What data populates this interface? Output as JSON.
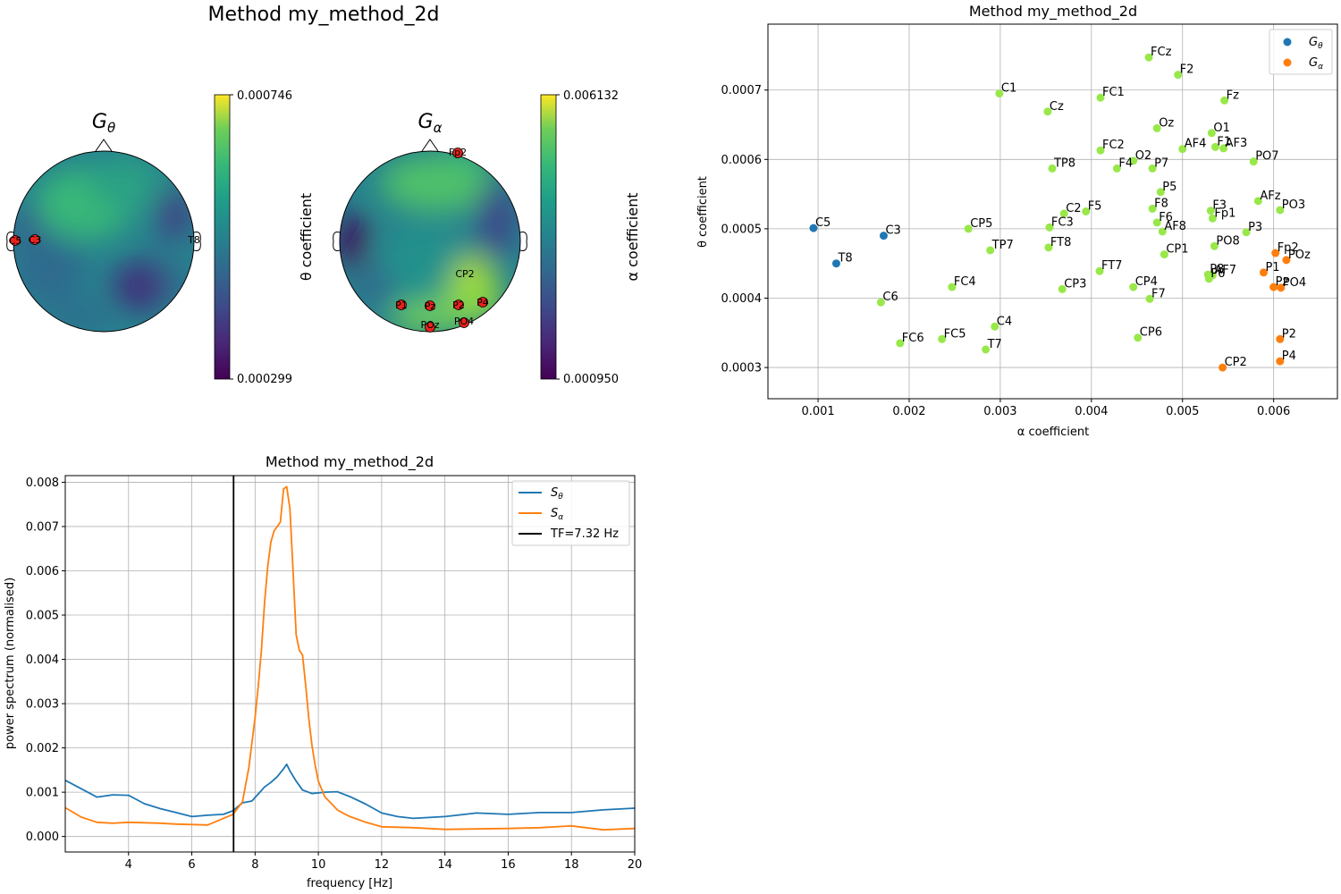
{
  "figure": {
    "topomap_suptitle": "Method my_method_2d"
  },
  "topomaps": [
    {
      "title_symbol": "G",
      "title_sub": "θ",
      "cbar_max": "0.000746",
      "cbar_min": "0.000299",
      "cbar_label": "θ coefficient",
      "markers": [
        "C5",
        "C3",
        "T8"
      ]
    },
    {
      "title_symbol": "G",
      "title_sub": "α",
      "cbar_max": "0.006132",
      "cbar_min": "0.000950",
      "cbar_label": "α coefficient",
      "markers": [
        "Fp2",
        "CP2",
        "P1",
        "P2",
        "P4",
        "POz",
        "PO4",
        "Pz"
      ]
    }
  ],
  "colors": {
    "theta": "#1f77b4",
    "alpha": "#ff7f0e",
    "other": "#98e84a",
    "tf_line": "#000000",
    "marker": "#e8231d"
  },
  "chart_data": [
    {
      "type": "scatter",
      "title": "Method my_method_2d",
      "xlabel": "α coefficient",
      "ylabel": "θ coefficient",
      "xlim": [
        0.00045,
        0.0067
      ],
      "ylim": [
        0.000255,
        0.000795
      ],
      "xticks": [
        0.001,
        0.002,
        0.003,
        0.004,
        0.005,
        0.006
      ],
      "xtick_labels": [
        "0.001",
        "0.002",
        "0.003",
        "0.004",
        "0.005",
        "0.006"
      ],
      "yticks": [
        0.0003,
        0.0004,
        0.0005,
        0.0006,
        0.0007
      ],
      "ytick_labels": [
        "0.0003",
        "0.0004",
        "0.0005",
        "0.0006",
        "0.0007"
      ],
      "grid": true,
      "legend": "top-right",
      "legend_entries": [
        {
          "symbol": "G",
          "sub": "θ",
          "color": "#1f77b4"
        },
        {
          "symbol": "G",
          "sub": "α",
          "color": "#ff7f0e"
        }
      ],
      "points": [
        {
          "label": "C5",
          "x": 0.00095,
          "y": 0.000501,
          "group": "theta"
        },
        {
          "label": "C3",
          "x": 0.00172,
          "y": 0.00049,
          "group": "theta"
        },
        {
          "label": "T8",
          "x": 0.0012,
          "y": 0.00045,
          "group": "theta"
        },
        {
          "label": "Fp2",
          "x": 0.00602,
          "y": 0.000465,
          "group": "alpha"
        },
        {
          "label": "POz",
          "x": 0.00614,
          "y": 0.000455,
          "group": "alpha"
        },
        {
          "label": "P1",
          "x": 0.00589,
          "y": 0.000437,
          "group": "alpha"
        },
        {
          "label": "Pz",
          "x": 0.006,
          "y": 0.000416,
          "group": "alpha"
        },
        {
          "label": "PO4",
          "x": 0.00608,
          "y": 0.000415,
          "group": "alpha"
        },
        {
          "label": "P2",
          "x": 0.00607,
          "y": 0.000341,
          "group": "alpha"
        },
        {
          "label": "P4",
          "x": 0.00607,
          "y": 0.000309,
          "group": "alpha"
        },
        {
          "label": "CP2",
          "x": 0.00544,
          "y": 0.0003,
          "group": "alpha"
        },
        {
          "label": "FCz",
          "x": 0.00463,
          "y": 0.000747,
          "group": "other"
        },
        {
          "label": "F2",
          "x": 0.00495,
          "y": 0.000722,
          "group": "other"
        },
        {
          "label": "C1",
          "x": 0.00299,
          "y": 0.000695,
          "group": "other"
        },
        {
          "label": "FC1",
          "x": 0.0041,
          "y": 0.000689,
          "group": "other"
        },
        {
          "label": "Fz",
          "x": 0.00546,
          "y": 0.000685,
          "group": "other"
        },
        {
          "label": "Cz",
          "x": 0.00352,
          "y": 0.000669,
          "group": "other"
        },
        {
          "label": "Oz",
          "x": 0.00472,
          "y": 0.000645,
          "group": "other"
        },
        {
          "label": "O1",
          "x": 0.00532,
          "y": 0.000638,
          "group": "other"
        },
        {
          "label": "FC2",
          "x": 0.0041,
          "y": 0.000613,
          "group": "other"
        },
        {
          "label": "AF4",
          "x": 0.005,
          "y": 0.000615,
          "group": "other"
        },
        {
          "label": "F1",
          "x": 0.00536,
          "y": 0.000618,
          "group": "other"
        },
        {
          "label": "AF3",
          "x": 0.00545,
          "y": 0.000616,
          "group": "other"
        },
        {
          "label": "O2",
          "x": 0.00446,
          "y": 0.000598,
          "group": "other"
        },
        {
          "label": "PO7",
          "x": 0.00578,
          "y": 0.000597,
          "group": "other"
        },
        {
          "label": "TP8",
          "x": 0.00357,
          "y": 0.000587,
          "group": "other"
        },
        {
          "label": "F4",
          "x": 0.00428,
          "y": 0.000587,
          "group": "other"
        },
        {
          "label": "P7",
          "x": 0.00467,
          "y": 0.000587,
          "group": "other"
        },
        {
          "label": "P5",
          "x": 0.00476,
          "y": 0.000553,
          "group": "other"
        },
        {
          "label": "AFz",
          "x": 0.00583,
          "y": 0.00054,
          "group": "other"
        },
        {
          "label": "F8",
          "x": 0.00467,
          "y": 0.000529,
          "group": "other"
        },
        {
          "label": "F3",
          "x": 0.00531,
          "y": 0.000526,
          "group": "other"
        },
        {
          "label": "PO3",
          "x": 0.00607,
          "y": 0.000527,
          "group": "other"
        },
        {
          "label": "F5",
          "x": 0.00394,
          "y": 0.000525,
          "group": "other"
        },
        {
          "label": "C2",
          "x": 0.0037,
          "y": 0.000522,
          "group": "other"
        },
        {
          "label": "Fp1",
          "x": 0.00533,
          "y": 0.000515,
          "group": "other"
        },
        {
          "label": "F6",
          "x": 0.00472,
          "y": 0.000509,
          "group": "other"
        },
        {
          "label": "FC3",
          "x": 0.00354,
          "y": 0.000502,
          "group": "other"
        },
        {
          "label": "CP5",
          "x": 0.00265,
          "y": 0.0005,
          "group": "other"
        },
        {
          "label": "AF8",
          "x": 0.00478,
          "y": 0.000496,
          "group": "other"
        },
        {
          "label": "P3",
          "x": 0.0057,
          "y": 0.000495,
          "group": "other"
        },
        {
          "label": "PO8",
          "x": 0.00535,
          "y": 0.000475,
          "group": "other"
        },
        {
          "label": "FT8",
          "x": 0.00353,
          "y": 0.000473,
          "group": "other"
        },
        {
          "label": "TP7",
          "x": 0.00289,
          "y": 0.000469,
          "group": "other"
        },
        {
          "label": "CP1",
          "x": 0.0048,
          "y": 0.000463,
          "group": "other"
        },
        {
          "label": "FT7",
          "x": 0.00409,
          "y": 0.000439,
          "group": "other"
        },
        {
          "label": "P8",
          "x": 0.00528,
          "y": 0.000434,
          "group": "other"
        },
        {
          "label": "AF7",
          "x": 0.00533,
          "y": 0.000433,
          "group": "other"
        },
        {
          "label": "P6",
          "x": 0.00529,
          "y": 0.000428,
          "group": "other"
        },
        {
          "label": "CP4",
          "x": 0.00446,
          "y": 0.000416,
          "group": "other"
        },
        {
          "label": "FC4",
          "x": 0.00247,
          "y": 0.000416,
          "group": "other"
        },
        {
          "label": "CP3",
          "x": 0.00368,
          "y": 0.000413,
          "group": "other"
        },
        {
          "label": "F7",
          "x": 0.00464,
          "y": 0.000399,
          "group": "other"
        },
        {
          "label": "C6",
          "x": 0.00169,
          "y": 0.000394,
          "group": "other"
        },
        {
          "label": "C4",
          "x": 0.00294,
          "y": 0.000359,
          "group": "other"
        },
        {
          "label": "CP6",
          "x": 0.00451,
          "y": 0.000343,
          "group": "other"
        },
        {
          "label": "FC5",
          "x": 0.00236,
          "y": 0.000341,
          "group": "other"
        },
        {
          "label": "FC6",
          "x": 0.0019,
          "y": 0.000335,
          "group": "other"
        },
        {
          "label": "T7",
          "x": 0.00284,
          "y": 0.000326,
          "group": "other"
        }
      ]
    },
    {
      "type": "line",
      "title": "Method my_method_2d",
      "xlabel": "frequency [Hz]",
      "ylabel": "power spectrum (normalised)",
      "xlim": [
        2,
        20
      ],
      "ylim": [
        -0.00035,
        0.00815
      ],
      "xticks": [
        4,
        6,
        8,
        10,
        12,
        14,
        16,
        18,
        20
      ],
      "xtick_labels": [
        "4",
        "6",
        "8",
        "10",
        "12",
        "14",
        "16",
        "18",
        "20"
      ],
      "yticks": [
        0,
        0.001,
        0.002,
        0.003,
        0.004,
        0.005,
        0.006,
        0.007,
        0.008
      ],
      "ytick_labels": [
        "0.000",
        "0.001",
        "0.002",
        "0.003",
        "0.004",
        "0.005",
        "0.006",
        "0.007",
        "0.008"
      ],
      "grid": true,
      "legend": "top-right",
      "vline": {
        "x": 7.32,
        "label": "TF=7.32 Hz",
        "color": "#000000"
      },
      "series": [
        {
          "symbol": "S",
          "sub": "θ",
          "color": "#1f77b4",
          "x": [
            2.0,
            2.5,
            3.0,
            3.5,
            4.0,
            4.5,
            5.0,
            5.5,
            6.0,
            6.5,
            7.0,
            7.3,
            7.6,
            7.9,
            8.1,
            8.3,
            8.5,
            8.7,
            8.9,
            9.0,
            9.1,
            9.3,
            9.5,
            9.8,
            10.2,
            10.6,
            11.0,
            11.5,
            12.0,
            12.5,
            13.0,
            13.5,
            14.0,
            15.0,
            16.0,
            17.0,
            18.0,
            19.0,
            20.0
          ],
          "y": [
            0.00127,
            0.00108,
            0.00089,
            0.00094,
            0.00093,
            0.00074,
            0.00063,
            0.00054,
            0.00045,
            0.00048,
            0.0005,
            0.00058,
            0.00076,
            0.0008,
            0.00096,
            0.00112,
            0.00122,
            0.00135,
            0.00153,
            0.00163,
            0.00148,
            0.00125,
            0.00105,
            0.00097,
            0.001,
            0.00101,
            0.0009,
            0.00073,
            0.00053,
            0.00045,
            0.00041,
            0.00043,
            0.00045,
            0.00053,
            0.0005,
            0.00054,
            0.00054,
            0.0006,
            0.00064
          ]
        },
        {
          "symbol": "S",
          "sub": "α",
          "color": "#ff7f0e",
          "x": [
            2.0,
            2.5,
            3.0,
            3.5,
            4.0,
            4.5,
            5.0,
            5.5,
            6.0,
            6.5,
            7.0,
            7.3,
            7.6,
            7.8,
            8.0,
            8.1,
            8.2,
            8.3,
            8.4,
            8.5,
            8.6,
            8.7,
            8.8,
            8.9,
            9.0,
            9.1,
            9.2,
            9.3,
            9.4,
            9.5,
            9.6,
            9.7,
            9.8,
            9.9,
            10.0,
            10.2,
            10.4,
            10.6,
            10.8,
            11.0,
            11.5,
            12.0,
            13.0,
            14.0,
            15.0,
            16.0,
            17.0,
            18.0,
            19.0,
            20.0
          ],
          "y": [
            0.00065,
            0.00044,
            0.00032,
            0.0003,
            0.00032,
            0.00031,
            0.0003,
            0.00028,
            0.00027,
            0.00026,
            0.00041,
            0.0005,
            0.00078,
            0.00155,
            0.00268,
            0.0034,
            0.0042,
            0.0053,
            0.0061,
            0.00665,
            0.0069,
            0.007,
            0.0071,
            0.00785,
            0.0079,
            0.0074,
            0.006,
            0.00455,
            0.0042,
            0.0041,
            0.0034,
            0.00265,
            0.00205,
            0.0016,
            0.00125,
            0.0009,
            0.00075,
            0.0006,
            0.00052,
            0.00045,
            0.00032,
            0.00022,
            0.0002,
            0.00016,
            0.00017,
            0.00018,
            0.0002,
            0.00024,
            0.00015,
            0.00018
          ]
        }
      ]
    }
  ]
}
